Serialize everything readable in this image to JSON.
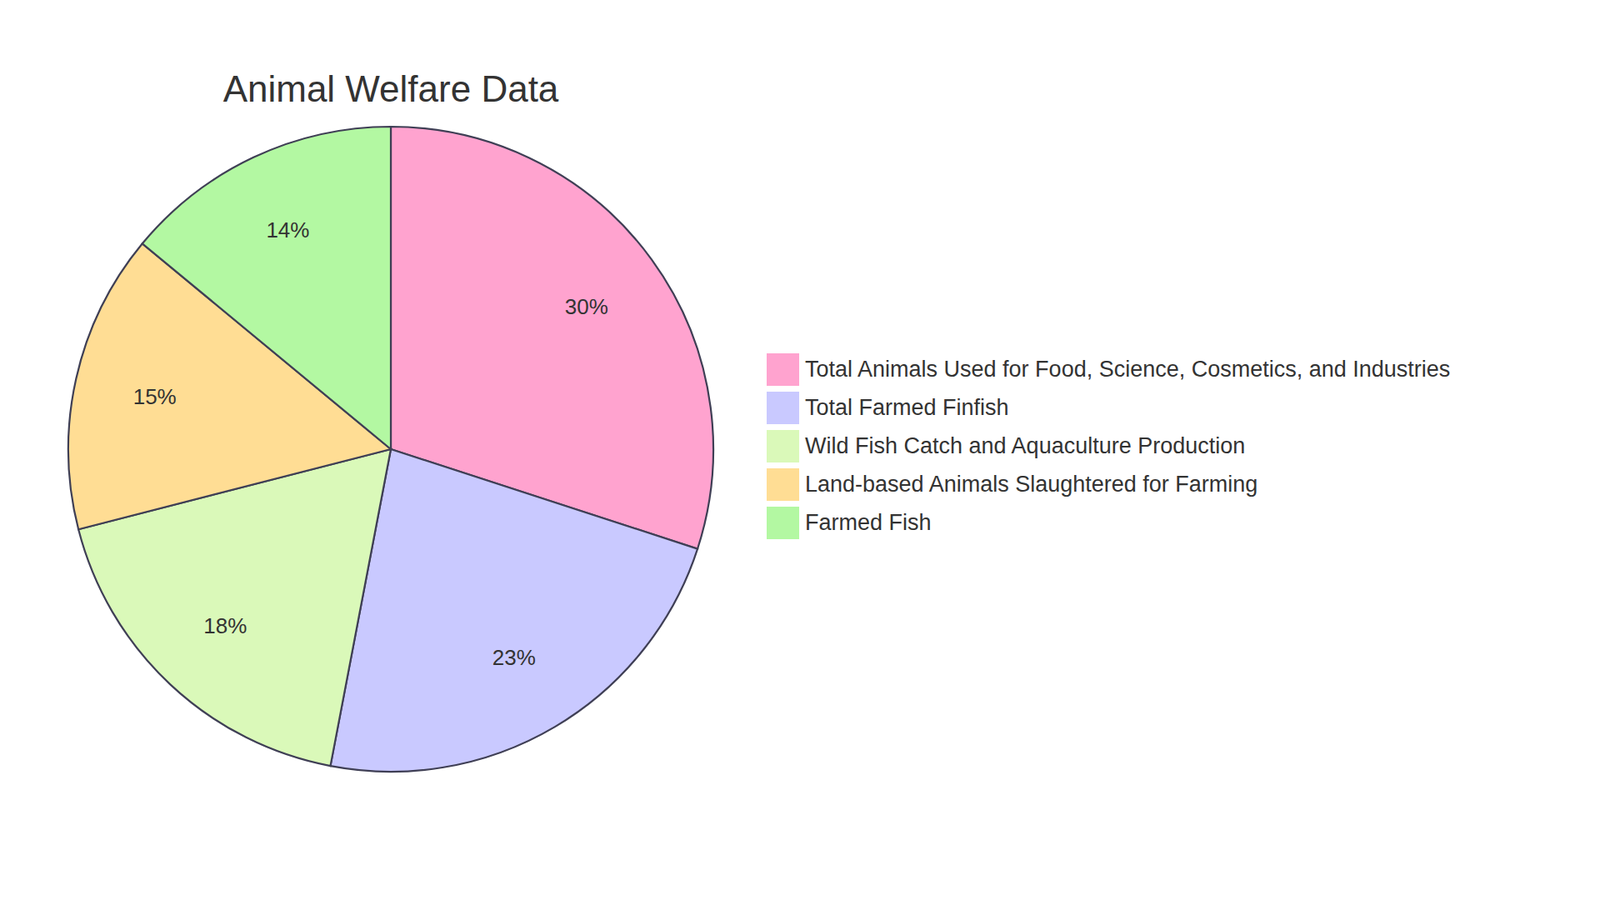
{
  "chart_data": {
    "type": "pie",
    "title": "Animal Welfare Data",
    "categories": [
      "Total Animals Used for Food, Science, Cosmetics, and Industries",
      "Total Farmed Finfish",
      "Wild Fish Catch and Aquaculture Production",
      "Land-based Animals Slaughtered for Farming",
      "Farmed Fish"
    ],
    "values": [
      30,
      23,
      18,
      15,
      14
    ],
    "value_labels": [
      "30%",
      "23%",
      "18%",
      "15%",
      "14%"
    ],
    "colors": [
      "#ffa3cf",
      "#c9c9ff",
      "#daf9b9",
      "#ffdd94",
      "#b3f8a2"
    ],
    "data_labels": true,
    "legend": "right"
  }
}
